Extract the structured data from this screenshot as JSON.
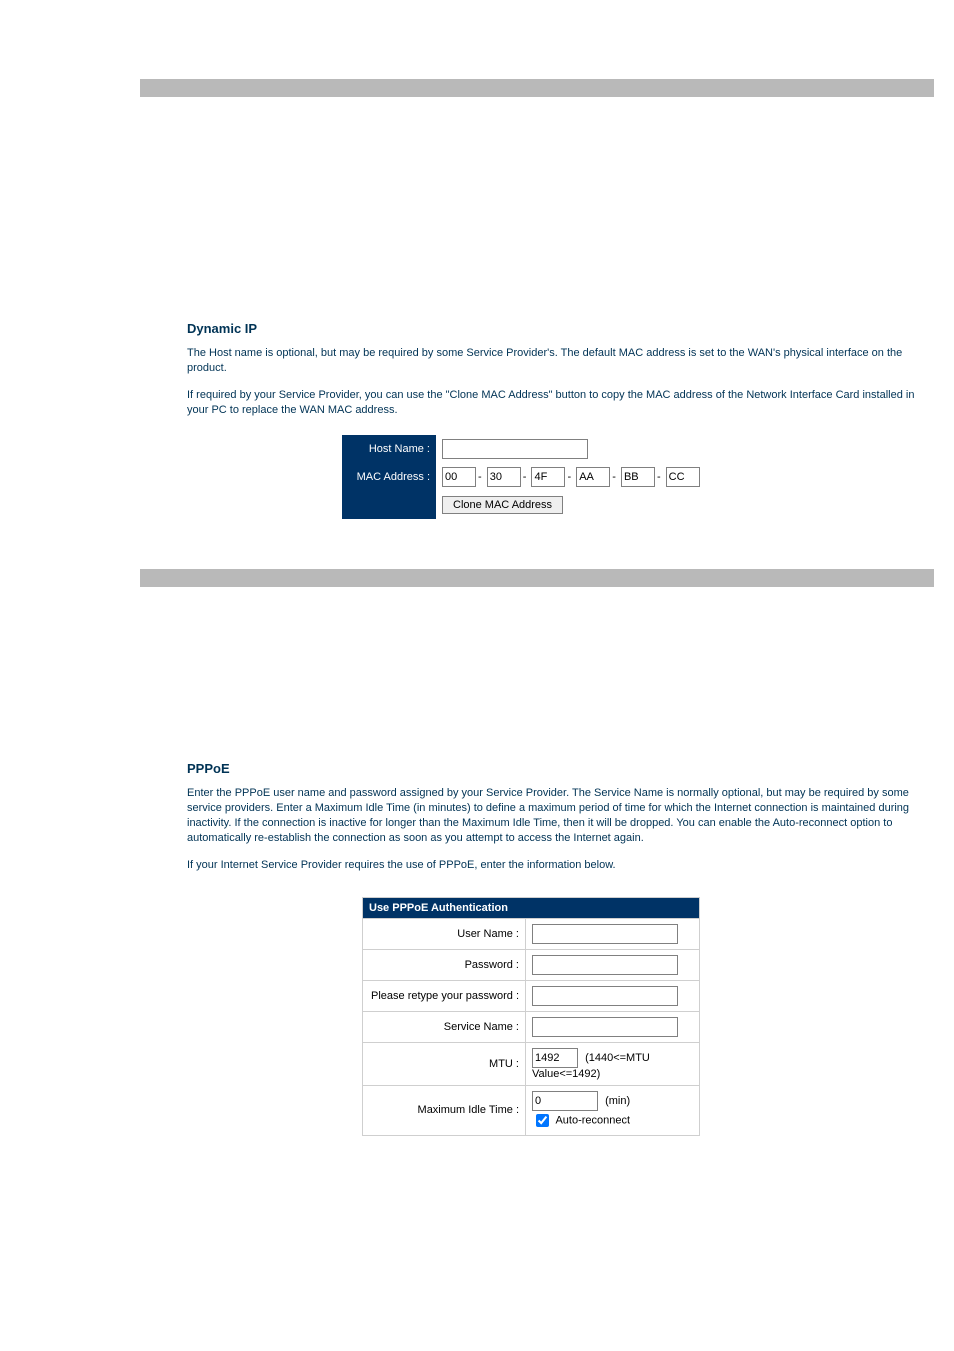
{
  "colors": {
    "grey_bar": "#b9b9b9",
    "navy": "#003366",
    "heading": "#003355",
    "border": "#808080",
    "table_border": "#cfcfcf",
    "white": "#ffffff"
  },
  "dynamic_ip": {
    "title": "Dynamic IP",
    "p1": "The Host name is optional, but may be required by some Service Provider's. The default MAC address is set to the WAN's physical interface on the product.",
    "p2": "If required by your Service Provider, you can use the \"Clone MAC Address\" button to copy the MAC address of the Network Interface Card installed in your PC to replace the WAN MAC address.",
    "host_name_label": "Host Name :",
    "host_name_value": "",
    "mac_label": "MAC Address :",
    "mac_octets": [
      "00",
      "30",
      "4F",
      "AA",
      "BB",
      "CC"
    ],
    "clone_btn": "Clone MAC Address"
  },
  "pppoe": {
    "title": "PPPoE",
    "p1": "Enter the PPPoE user name and password assigned by your Service Provider. The Service Name is normally optional, but may be required by some service providers.  Enter a Maximum Idle Time (in minutes) to define a maximum period of time for which the Internet connection is maintained during inactivity.  If the connection is inactive for longer than the Maximum Idle Time, then it will be dropped. You can enable the Auto-reconnect option to automatically re-establish the connection as soon as you attempt to access the Internet again.",
    "p2": "If your Internet Service Provider requires the use of PPPoE, enter the information below.",
    "table_header": "Use PPPoE Authentication",
    "labels": {
      "user": "User Name :",
      "pass": "Password :",
      "retype": "Please retype your password :",
      "service": "Service Name :",
      "mtu": "MTU :",
      "idle": "Maximum Idle Time :"
    },
    "values": {
      "user": "",
      "pass": "",
      "retype": "",
      "service": "",
      "mtu": "1492",
      "idle": "0"
    },
    "mtu_note": "(1440<=MTU Value<=1492)",
    "idle_unit": "(min)",
    "auto_reconnect_label": "Auto-reconnect",
    "auto_reconnect_checked": true
  }
}
